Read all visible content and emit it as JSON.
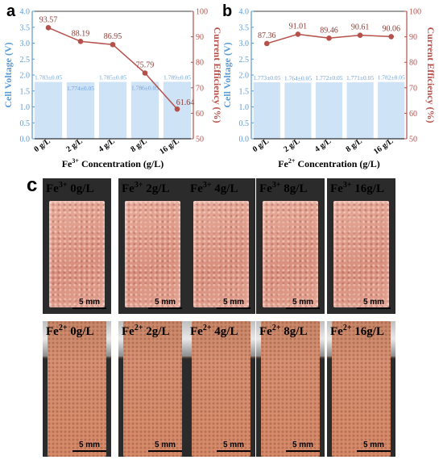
{
  "chart_data": [
    {
      "panel": "a",
      "type": "bar",
      "categories": [
        "0 g/L",
        "2 g/L",
        "4 g/L",
        "8 g/L",
        "16 g/L"
      ],
      "xlabel_base": "Fe",
      "xlabel_sup": "3+",
      "xlabel_rest": " Concentration (g/L)",
      "series": [
        {
          "kind": "bar",
          "axis": "left",
          "values": [
            1.783,
            1.774,
            1.785,
            1.786,
            1.789
          ],
          "labels": [
            "1.783±0.05",
            "1.774±0.05",
            "1.785±0.05",
            "1.786±0.05",
            "1.789±0.05"
          ]
        },
        {
          "kind": "line",
          "axis": "right",
          "values": [
            93.57,
            88.19,
            86.95,
            75.79,
            61.64
          ],
          "labels": [
            "93.57",
            "88.19",
            "86.95",
            "75.79",
            "61.64"
          ]
        }
      ],
      "ylabel": "Cell Voltage (V)",
      "ylim": [
        0,
        4.0
      ],
      "yticks": [
        "0.0",
        "0.5",
        "1.0",
        "1.5",
        "2.0",
        "2.5",
        "3.0",
        "3.5",
        "4.0"
      ],
      "y2label": "Current Efficiency (%)",
      "y2lim": [
        50,
        100
      ],
      "y2ticks": [
        "50",
        "60",
        "70",
        "80",
        "90",
        "100"
      ]
    },
    {
      "panel": "b",
      "type": "bar",
      "categories": [
        "0 g/L",
        "2 g/L",
        "4 g/L",
        "8 g/L",
        "16 g/L"
      ],
      "xlabel_base": "Fe",
      "xlabel_sup": "2+",
      "xlabel_rest": " Concentration (g/L)",
      "series": [
        {
          "kind": "bar",
          "axis": "left",
          "values": [
            1.773,
            1.764,
            1.772,
            1.771,
            1.782
          ],
          "labels": [
            "1.773±0.05",
            "1.764±0.05",
            "1.772±0.05",
            "1.771±0.05",
            "1.782±0.05"
          ]
        },
        {
          "kind": "line",
          "axis": "right",
          "values": [
            87.36,
            91.01,
            89.46,
            90.61,
            90.06
          ],
          "labels": [
            "87.36",
            "91.01",
            "89.46",
            "90.61",
            "90.06"
          ]
        }
      ],
      "ylabel": "Cell Voltage (V)",
      "ylim": [
        0,
        4.0
      ],
      "yticks": [
        "0.0",
        "0.5",
        "1.0",
        "1.5",
        "2.0",
        "2.5",
        "3.0",
        "3.5",
        "4.0"
      ],
      "y2label": "Current Efficiency (%)",
      "y2lim": [
        50,
        100
      ],
      "y2ticks": [
        "50",
        "60",
        "70",
        "80",
        "90",
        "100"
      ]
    }
  ],
  "colors": {
    "bar_fill": "#cfe3f7",
    "bar_label": "#6f9fd8",
    "left_axis": "#5b9bd5",
    "line": "#b5504a",
    "point_label": "#8c3b35"
  },
  "photos": {
    "panel_letter": "c",
    "rows": [
      {
        "ion_base": "Fe",
        "ion_sup": "3+",
        "concs": [
          "0g/L",
          "2g/L",
          "4g/L",
          "8g/L",
          "16g/L"
        ]
      },
      {
        "ion_base": "Fe",
        "ion_sup": "2+",
        "concs": [
          "0g/L",
          "2g/L",
          "4g/L",
          "8g/L",
          "16g/L"
        ]
      }
    ],
    "scale_label": "5 mm"
  }
}
